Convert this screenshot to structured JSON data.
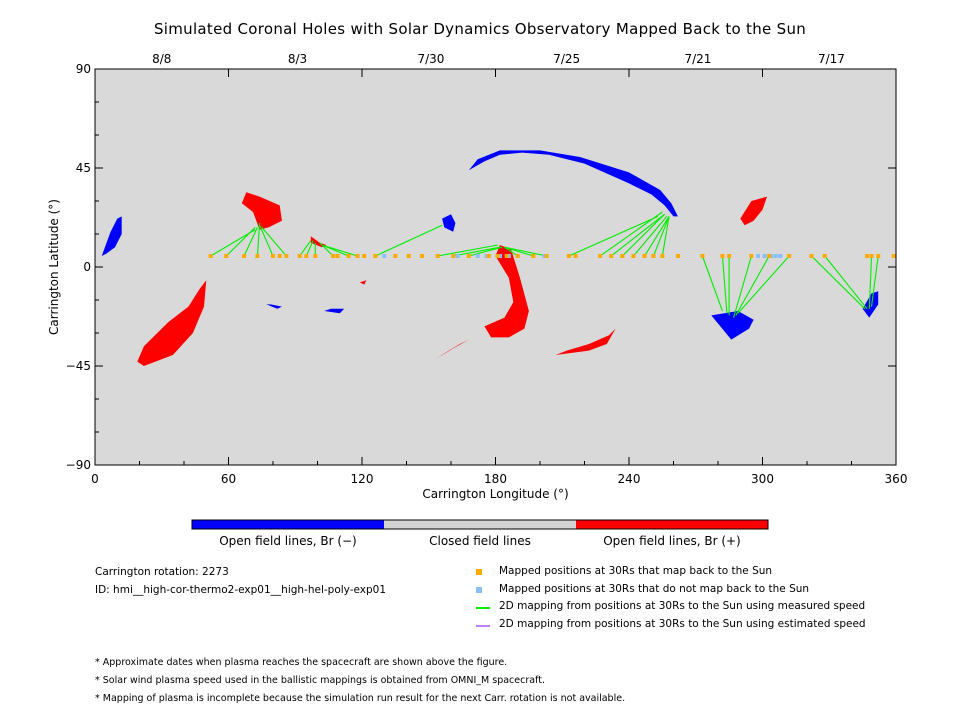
{
  "title": "Simulated Coronal Holes with Solar Dynamics Observatory Mapped Back to the Sun",
  "colors": {
    "background_plot": "#d9d9d9",
    "open_negative": "#0000ff",
    "open_positive": "#ff0000",
    "closed": "#d3d3d3",
    "mapped_back": "#ffaa00",
    "not_mapped_back": "#88c0ff",
    "measured_speed_line": "#00ee00",
    "estimated_speed_line": "#c080ff"
  },
  "chart_data": {
    "type": "scatter",
    "xlabel": "Carrington Longitude (°)",
    "ylabel": "Carrington Latitude (°)",
    "xlim": [
      0,
      360
    ],
    "ylim": [
      -90,
      90
    ],
    "x_ticks": [
      "0",
      "60",
      "120",
      "180",
      "240",
      "300",
      "360"
    ],
    "y_ticks": [
      "-90",
      "-45",
      "0",
      "45",
      "90"
    ],
    "top_axis": {
      "labels": [
        "8/8",
        "8/3",
        "7/30",
        "7/25",
        "7/21",
        "7/17"
      ],
      "longitudes": [
        30,
        91,
        151,
        212,
        271,
        331
      ]
    },
    "regions": [
      {
        "polarity": "negative",
        "points": [
          [
            3,
            5
          ],
          [
            7,
            16
          ],
          [
            10,
            22
          ],
          [
            12,
            23
          ],
          [
            12,
            15
          ],
          [
            9,
            9
          ],
          [
            5,
            6
          ]
        ]
      },
      {
        "polarity": "positive",
        "points": [
          [
            68,
            34
          ],
          [
            74,
            32
          ],
          [
            83,
            28
          ],
          [
            84,
            21
          ],
          [
            78,
            18
          ],
          [
            74,
            17
          ],
          [
            71,
            25
          ],
          [
            66,
            29
          ]
        ]
      },
      {
        "polarity": "positive",
        "points": [
          [
            97,
            14
          ],
          [
            101,
            11
          ],
          [
            104,
            10
          ],
          [
            102,
            9
          ],
          [
            97,
            11
          ]
        ]
      },
      {
        "polarity": "positive",
        "points": [
          [
            295,
            30
          ],
          [
            302,
            32
          ],
          [
            300,
            26
          ],
          [
            296,
            21
          ],
          [
            292,
            19
          ],
          [
            290,
            22
          ]
        ]
      },
      {
        "polarity": "positive",
        "points": [
          [
            22,
            -45
          ],
          [
            35,
            -40
          ],
          [
            44,
            -30
          ],
          [
            49,
            -18
          ],
          [
            50,
            -6
          ],
          [
            47,
            -10
          ],
          [
            42,
            -18
          ],
          [
            33,
            -25
          ],
          [
            22,
            -36
          ],
          [
            19,
            -43
          ]
        ]
      },
      {
        "polarity": "positive",
        "points": [
          [
            175,
            -27
          ],
          [
            178,
            -32
          ],
          [
            186,
            -32
          ],
          [
            193,
            -28
          ],
          [
            195,
            -20
          ],
          [
            191,
            -5
          ],
          [
            187,
            8
          ],
          [
            182,
            10
          ],
          [
            180,
            5
          ],
          [
            186,
            -5
          ],
          [
            188,
            -16
          ],
          [
            184,
            -23
          ]
        ]
      },
      {
        "polarity": "positive",
        "points": [
          [
            153,
            -42
          ],
          [
            161,
            -37
          ],
          [
            168,
            -33
          ],
          [
            170,
            -32
          ],
          [
            164,
            -35
          ],
          [
            159,
            -38
          ]
        ]
      },
      {
        "polarity": "positive",
        "points": [
          [
            207,
            -40
          ],
          [
            222,
            -38
          ],
          [
            230,
            -35
          ],
          [
            234,
            -28
          ],
          [
            231,
            -31
          ],
          [
            222,
            -35
          ],
          [
            212,
            -38
          ]
        ]
      },
      {
        "polarity": "positive",
        "points": [
          [
            119,
            -7
          ],
          [
            122,
            -6
          ],
          [
            121,
            -8
          ]
        ]
      },
      {
        "polarity": "negative",
        "points": [
          [
            156,
            22
          ],
          [
            160,
            24
          ],
          [
            162,
            20
          ],
          [
            161,
            16
          ],
          [
            157,
            18
          ]
        ]
      },
      {
        "polarity": "negative",
        "points": [
          [
            168,
            44
          ],
          [
            175,
            48
          ],
          [
            182,
            51
          ],
          [
            192,
            52
          ],
          [
            204,
            51
          ],
          [
            220,
            47
          ],
          [
            240,
            38
          ],
          [
            250,
            33
          ],
          [
            256,
            28
          ],
          [
            260,
            23
          ],
          [
            262,
            23
          ],
          [
            259,
            29
          ],
          [
            254,
            35
          ],
          [
            240,
            43
          ],
          [
            218,
            50
          ],
          [
            200,
            53
          ],
          [
            182,
            53
          ],
          [
            172,
            49
          ]
        ]
      },
      {
        "polarity": "negative",
        "points": [
          [
            277,
            -22
          ],
          [
            286,
            -33
          ],
          [
            294,
            -28
          ],
          [
            296,
            -24
          ],
          [
            289,
            -20
          ]
        ]
      },
      {
        "polarity": "negative",
        "points": [
          [
            345,
            -19
          ],
          [
            348,
            -23
          ],
          [
            352,
            -17
          ],
          [
            352,
            -11
          ],
          [
            349,
            -12
          ]
        ]
      },
      {
        "polarity": "negative",
        "points": [
          [
            77,
            -17
          ],
          [
            82,
            -19
          ],
          [
            84,
            -18
          ],
          [
            79,
            -17
          ]
        ]
      },
      {
        "polarity": "negative",
        "points": [
          [
            103,
            -20
          ],
          [
            110,
            -21
          ],
          [
            112,
            -19
          ],
          [
            106,
            -19
          ]
        ]
      }
    ],
    "mapped_points": {
      "longitudes": [
        52,
        59,
        67,
        73,
        80,
        83,
        86,
        92,
        95,
        99,
        107,
        109,
        114,
        118,
        121,
        126,
        135,
        141,
        147,
        154,
        161,
        168,
        177,
        181,
        185,
        190,
        197,
        203,
        213,
        216,
        227,
        232,
        237,
        242,
        247,
        251,
        255,
        262,
        273,
        282,
        285,
        295,
        303,
        312,
        322,
        328,
        347,
        349,
        352,
        359
      ],
      "latitude": 5
    },
    "unmapped_points": {
      "longitudes": [
        130,
        163,
        172,
        176,
        182,
        186,
        202,
        298,
        301,
        304,
        306,
        308
      ],
      "latitude": 5
    },
    "mapping_lines": [
      {
        "from": [
          52,
          5
        ],
        "to": [
          72,
          17
        ]
      },
      {
        "from": [
          59,
          5
        ],
        "to": [
          72,
          18
        ]
      },
      {
        "from": [
          67,
          5
        ],
        "to": [
          73,
          18
        ]
      },
      {
        "from": [
          73,
          5
        ],
        "to": [
          74,
          20
        ]
      },
      {
        "from": [
          80,
          5
        ],
        "to": [
          74,
          19
        ]
      },
      {
        "from": [
          86,
          5
        ],
        "to": [
          75,
          18
        ]
      },
      {
        "from": [
          92,
          5
        ],
        "to": [
          97,
          12
        ]
      },
      {
        "from": [
          95,
          5
        ],
        "to": [
          98,
          12
        ]
      },
      {
        "from": [
          99,
          5
        ],
        "to": [
          99,
          11
        ]
      },
      {
        "from": [
          107,
          5
        ],
        "to": [
          101,
          11
        ]
      },
      {
        "from": [
          114,
          5
        ],
        "to": [
          102,
          10
        ]
      },
      {
        "from": [
          118,
          5
        ],
        "to": [
          102,
          10
        ]
      },
      {
        "from": [
          126,
          5
        ],
        "to": [
          156,
          19
        ]
      },
      {
        "from": [
          154,
          5
        ],
        "to": [
          181,
          10
        ]
      },
      {
        "from": [
          161,
          5
        ],
        "to": [
          182,
          9
        ]
      },
      {
        "from": [
          168,
          5
        ],
        "to": [
          183,
          9
        ]
      },
      {
        "from": [
          190,
          5
        ],
        "to": [
          184,
          9
        ]
      },
      {
        "from": [
          197,
          5
        ],
        "to": [
          184,
          9
        ]
      },
      {
        "from": [
          203,
          5
        ],
        "to": [
          184,
          9
        ]
      },
      {
        "from": [
          213,
          5
        ],
        "to": [
          253,
          23
        ]
      },
      {
        "from": [
          227,
          5
        ],
        "to": [
          255,
          25
        ]
      },
      {
        "from": [
          232,
          5
        ],
        "to": [
          256,
          24
        ]
      },
      {
        "from": [
          237,
          5
        ],
        "to": [
          256,
          24
        ]
      },
      {
        "from": [
          242,
          5
        ],
        "to": [
          257,
          23
        ]
      },
      {
        "from": [
          247,
          5
        ],
        "to": [
          258,
          23
        ]
      },
      {
        "from": [
          251,
          5
        ],
        "to": [
          258,
          23
        ]
      },
      {
        "from": [
          255,
          5
        ],
        "to": [
          258,
          23
        ]
      },
      {
        "from": [
          273,
          5
        ],
        "to": [
          282,
          -20
        ]
      },
      {
        "from": [
          282,
          5
        ],
        "to": [
          284,
          -21
        ]
      },
      {
        "from": [
          285,
          5
        ],
        "to": [
          285,
          -22
        ]
      },
      {
        "from": [
          295,
          5
        ],
        "to": [
          287,
          -23
        ]
      },
      {
        "from": [
          303,
          5
        ],
        "to": [
          288,
          -22
        ]
      },
      {
        "from": [
          312,
          5
        ],
        "to": [
          289,
          -21
        ]
      },
      {
        "from": [
          322,
          5
        ],
        "to": [
          346,
          -19
        ]
      },
      {
        "from": [
          328,
          5
        ],
        "to": [
          347,
          -19
        ]
      },
      {
        "from": [
          349,
          5
        ],
        "to": [
          348,
          -19
        ]
      },
      {
        "from": [
          352,
          5
        ],
        "to": [
          349,
          -18
        ]
      }
    ]
  },
  "colorbar": {
    "labels": [
      "Open field lines, Br (−)",
      "Closed field lines",
      "Open field lines, Br (+)"
    ]
  },
  "info": {
    "rotation": "Carrington rotation: 2273",
    "id": "ID: hmi__high-cor-thermo2-exp01__high-hel-poly-exp01"
  },
  "legend": [
    {
      "text": "Mapped positions at 30Rs that map back to the Sun",
      "kind": "square",
      "color": "#ffaa00"
    },
    {
      "text": "Mapped positions at 30Rs that do not map back to the Sun",
      "kind": "square",
      "color": "#88c0ff"
    },
    {
      "text": "2D mapping from positions at 30Rs to the Sun using measured speed",
      "kind": "line",
      "color": "#00ee00"
    },
    {
      "text": "2D mapping from positions at 30Rs to the Sun using estimated speed",
      "kind": "line",
      "color": "#c080ff"
    }
  ],
  "notes": [
    "* Approximate dates when plasma reaches the spacecraft are shown above the figure.",
    "* Solar wind plasma speed used in the ballistic mappings is obtained from OMNI_M spacecraft.",
    "* Mapping of plasma is incomplete because the simulation run result for the next Carr. rotation is not available."
  ]
}
